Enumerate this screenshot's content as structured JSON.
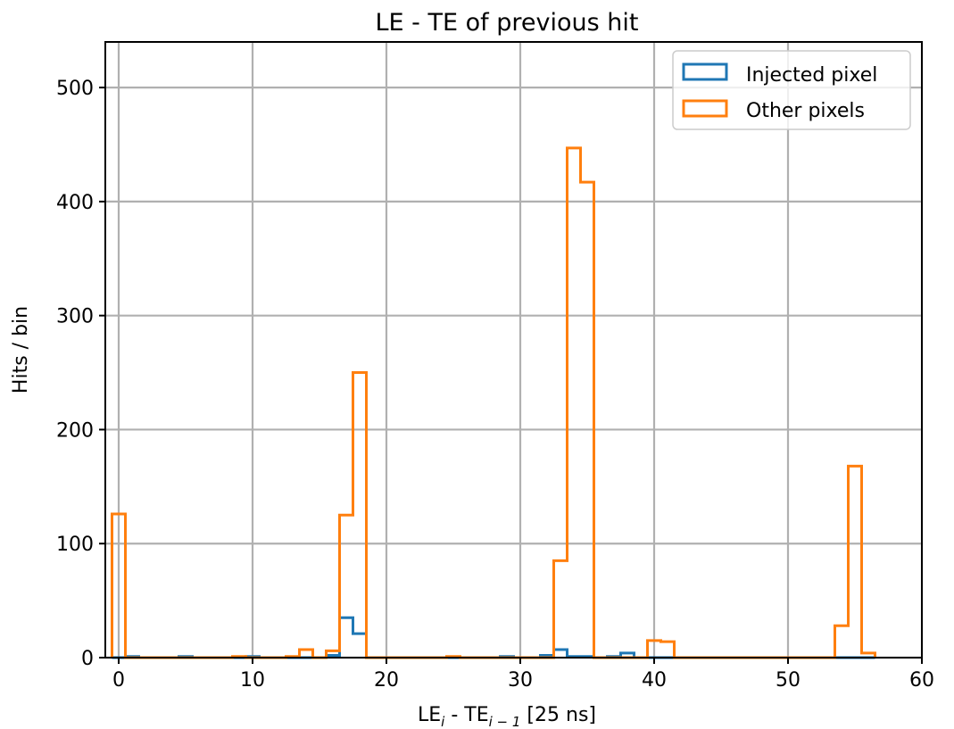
{
  "chart_data": {
    "type": "histogram",
    "title": "LE - TE of previous hit",
    "xlabel": {
      "base1": "LE",
      "sub1": "i",
      "mid": " - TE",
      "sub2": "i − 1",
      "tail": " [25 ns]"
    },
    "ylabel": "Hits / bin",
    "xlim": [
      -1,
      60
    ],
    "ylim": [
      0,
      540
    ],
    "xticks": [
      0,
      10,
      20,
      30,
      40,
      50,
      60
    ],
    "yticks": [
      0,
      100,
      200,
      300,
      400,
      500
    ],
    "grid": true,
    "legend_position": "upper right",
    "bin_width": 1,
    "bin_start": -0.5,
    "series": [
      {
        "name": "Injected pixel",
        "color": "#1f77b4",
        "values": [
          0,
          1,
          0,
          0,
          0,
          1,
          0,
          0,
          0,
          0,
          1,
          0,
          0,
          0,
          0,
          0,
          2,
          35,
          21,
          0,
          0,
          0,
          0,
          0,
          0,
          0,
          0,
          0,
          0,
          1,
          0,
          0,
          2,
          7,
          1,
          1,
          0,
          1,
          4,
          0,
          0,
          0,
          0,
          0,
          0,
          0,
          0,
          0,
          0,
          0,
          0,
          0,
          0,
          0,
          0,
          0,
          0
        ]
      },
      {
        "name": "Other pixels",
        "color": "#ff7f0e",
        "values": [
          126,
          0,
          0,
          0,
          0,
          0,
          0,
          0,
          0,
          1,
          0,
          0,
          0,
          1,
          7,
          0,
          6,
          125,
          250,
          0,
          0,
          0,
          0,
          0,
          0,
          1,
          0,
          0,
          0,
          0,
          0,
          0,
          0,
          85,
          447,
          417,
          0,
          0,
          0,
          0,
          15,
          14,
          0,
          0,
          0,
          0,
          0,
          0,
          0,
          0,
          0,
          0,
          0,
          0,
          28,
          168,
          4
        ]
      }
    ]
  }
}
